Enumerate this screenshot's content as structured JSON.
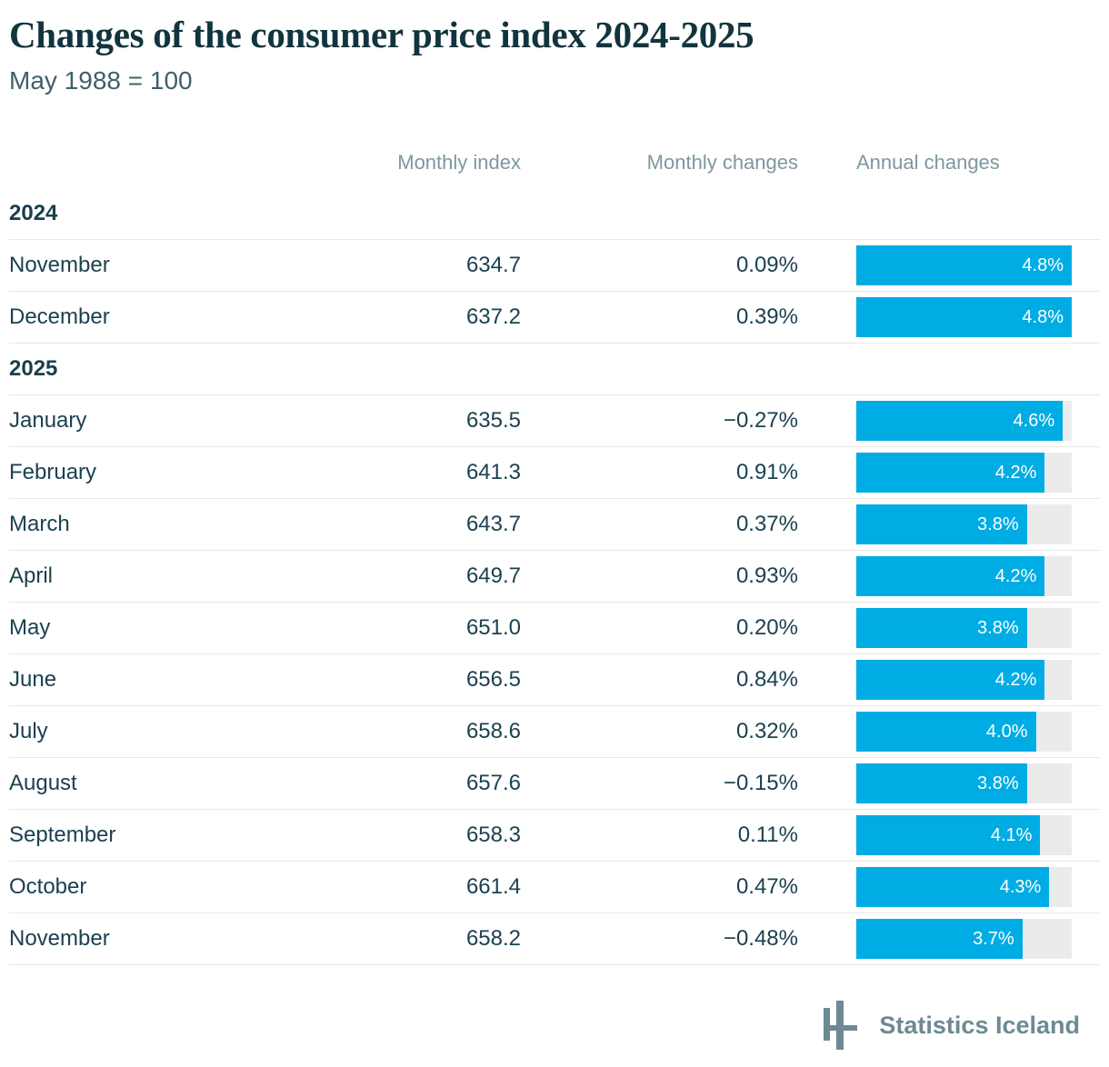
{
  "header": {
    "title": "Changes of the consumer price index 2024-2025",
    "subtitle": "May 1988 = 100"
  },
  "table": {
    "columns": [
      "Monthly index",
      "Monthly changes",
      "Annual changes"
    ],
    "annual_max": 4.8,
    "sections": [
      {
        "year": "2024",
        "rows": [
          {
            "month": "November",
            "index": "634.7",
            "change": "0.09%",
            "annual": "4.8%",
            "annual_value": 4.8
          },
          {
            "month": "December",
            "index": "637.2",
            "change": "0.39%",
            "annual": "4.8%",
            "annual_value": 4.8
          }
        ]
      },
      {
        "year": "2025",
        "rows": [
          {
            "month": "January",
            "index": "635.5",
            "change": "−0.27%",
            "annual": "4.6%",
            "annual_value": 4.6
          },
          {
            "month": "February",
            "index": "641.3",
            "change": "0.91%",
            "annual": "4.2%",
            "annual_value": 4.2
          },
          {
            "month": "March",
            "index": "643.7",
            "change": "0.37%",
            "annual": "3.8%",
            "annual_value": 3.8
          },
          {
            "month": "April",
            "index": "649.7",
            "change": "0.93%",
            "annual": "4.2%",
            "annual_value": 4.2
          },
          {
            "month": "May",
            "index": "651.0",
            "change": "0.20%",
            "annual": "3.8%",
            "annual_value": 3.8
          },
          {
            "month": "June",
            "index": "656.5",
            "change": "0.84%",
            "annual": "4.2%",
            "annual_value": 4.2
          },
          {
            "month": "July",
            "index": "658.6",
            "change": "0.32%",
            "annual": "4.0%",
            "annual_value": 4.0
          },
          {
            "month": "August",
            "index": "657.6",
            "change": "−0.15%",
            "annual": "3.8%",
            "annual_value": 3.8
          },
          {
            "month": "September",
            "index": "658.3",
            "change": "0.11%",
            "annual": "4.1%",
            "annual_value": 4.1
          },
          {
            "month": "October",
            "index": "661.4",
            "change": "0.47%",
            "annual": "4.3%",
            "annual_value": 4.3
          },
          {
            "month": "November",
            "index": "658.2",
            "change": "−0.48%",
            "annual": "3.7%",
            "annual_value": 3.7
          }
        ]
      }
    ]
  },
  "chart_data": {
    "type": "table",
    "title": "Changes of the consumer price index 2024-2025",
    "subtitle": "May 1988 = 100",
    "columns": [
      "Month",
      "Monthly index",
      "Monthly changes",
      "Annual changes"
    ],
    "rows": [
      [
        "2024 November",
        634.7,
        0.09,
        4.8
      ],
      [
        "2024 December",
        637.2,
        0.39,
        4.8
      ],
      [
        "2025 January",
        635.5,
        -0.27,
        4.6
      ],
      [
        "2025 February",
        641.3,
        0.91,
        4.2
      ],
      [
        "2025 March",
        643.7,
        0.37,
        3.8
      ],
      [
        "2025 April",
        649.7,
        0.93,
        4.2
      ],
      [
        "2025 May",
        651.0,
        0.2,
        3.8
      ],
      [
        "2025 June",
        656.5,
        0.84,
        4.2
      ],
      [
        "2025 July",
        658.6,
        0.32,
        4.0
      ],
      [
        "2025 August",
        657.6,
        -0.15,
        3.8
      ],
      [
        "2025 September",
        658.3,
        0.11,
        4.1
      ],
      [
        "2025 October",
        661.4,
        0.47,
        4.3
      ],
      [
        "2025 November",
        658.2,
        -0.48,
        3.7
      ]
    ],
    "annual_changes_bar": {
      "type": "bar",
      "bar_axis_max": 4.8,
      "unit": "%"
    }
  },
  "footer": {
    "logo_label": "Statistics Iceland"
  },
  "colors": {
    "bar_fill": "#00ace4",
    "bar_track": "#ebebeb",
    "title_text": "#12343f",
    "body_text": "#1b4150",
    "column_header_text": "#7e97a0",
    "divider": "#e8e8e8",
    "logo": "#6d8a93"
  }
}
